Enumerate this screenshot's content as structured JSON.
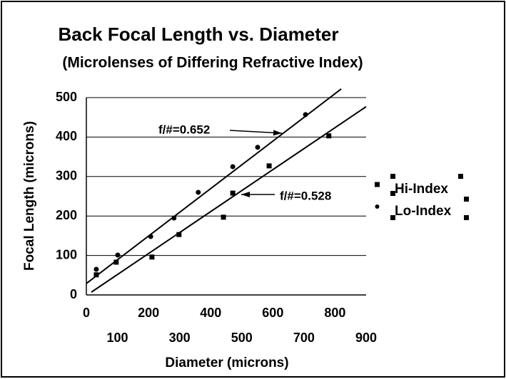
{
  "chart_data": {
    "type": "scatter",
    "title": "Back Focal Length  vs. Diameter",
    "subtitle": "(Microlenses of Differing Refractive Index)",
    "x_label": "Diameter (microns)",
    "y_label": "Focal Length (microns)",
    "xlim": [
      0,
      900
    ],
    "ylim": [
      0,
      500
    ],
    "xticks": [
      0,
      100,
      200,
      300,
      400,
      500,
      600,
      700,
      800,
      900
    ],
    "yticks": [
      0,
      100,
      200,
      300,
      400,
      500
    ],
    "grid": true,
    "series": [
      {
        "name": "Hi-Index",
        "marker": "square",
        "color": "#000000",
        "x": [
          32,
          96,
          211,
          298,
          441,
          471,
          588,
          780
        ],
        "values": [
          51,
          83,
          96,
          153,
          197,
          258,
          327,
          403
        ]
      },
      {
        "name": "Lo-Index",
        "marker": "circle",
        "color": "#000000",
        "x": [
          32,
          101,
          207,
          282,
          360,
          471,
          551,
          705
        ],
        "values": [
          65,
          101,
          148,
          195,
          260,
          325,
          374,
          457
        ]
      }
    ],
    "trendlines": [
      {
        "x": [
          0,
          820
        ],
        "values": [
          29,
          522
        ]
      },
      {
        "x": [
          16,
          900
        ],
        "values": [
          7,
          477
        ]
      }
    ],
    "annotations": [
      "f/#=0.652",
      "f/#=0.528"
    ],
    "legend": "right"
  }
}
